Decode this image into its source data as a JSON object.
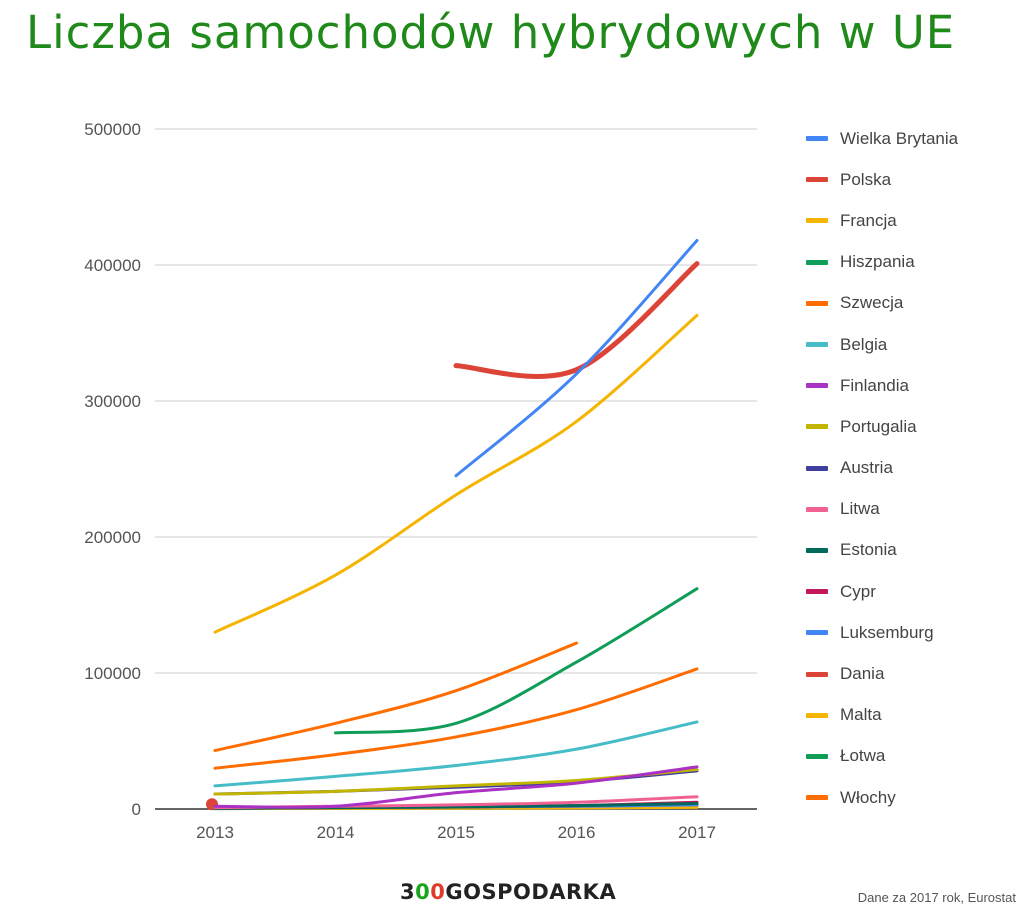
{
  "title": "Liczba samochodów hybrydowych w UE",
  "source_note": "Dane za 2017 rok, Eurostat",
  "brand": {
    "a": "3",
    "b": "0",
    "c": "0",
    "d": "GOSPODARKA"
  },
  "chart_data": {
    "type": "line",
    "title": "Liczba samochodów hybrydowych w UE",
    "x": [
      2013,
      2014,
      2015,
      2016,
      2017
    ],
    "xticks": [
      "2013",
      "2014",
      "2015",
      "2016",
      "2017"
    ],
    "yticks": [
      "0",
      "100000",
      "200000",
      "300000",
      "400000",
      "500000"
    ],
    "ylim": [
      0,
      500000
    ],
    "grid": true,
    "legend": "right",
    "series": [
      {
        "name": "Wielka Brytania",
        "color": "#4285f4",
        "values": [
          null,
          null,
          245000,
          320000,
          418000
        ]
      },
      {
        "name": "Polska",
        "color": "#db4437",
        "values": [
          null,
          null,
          326000,
          323000,
          401000
        ]
      },
      {
        "name": "Francja",
        "color": "#f4b400",
        "values": [
          130000,
          172000,
          231000,
          285000,
          363000
        ]
      },
      {
        "name": "Hiszpania",
        "color": "#0f9d58",
        "values": [
          null,
          56000,
          63000,
          108000,
          162000
        ]
      },
      {
        "name": "Szwecja",
        "color": "#ff6d00",
        "values": [
          30000,
          40000,
          53000,
          73000,
          103000
        ]
      },
      {
        "name": "Belgia",
        "color": "#46bdc6",
        "values": [
          17000,
          24000,
          32000,
          44000,
          64000
        ]
      },
      {
        "name": "Finlandia",
        "color": "#ab30c4",
        "values": [
          2000,
          2000,
          12000,
          19000,
          31000
        ]
      },
      {
        "name": "Portugalia",
        "color": "#c2b500",
        "values": [
          11000,
          13000,
          17000,
          21000,
          29000
        ]
      },
      {
        "name": "Austria",
        "color": "#3f3f9f",
        "values": [
          11000,
          13000,
          16000,
          20000,
          28000
        ]
      },
      {
        "name": "Litwa",
        "color": "#f06292",
        "values": [
          1000,
          2000,
          3000,
          5000,
          9000
        ]
      },
      {
        "name": "Estonia",
        "color": "#00695c",
        "values": [
          500,
          1000,
          1500,
          2500,
          4000
        ]
      },
      {
        "name": "Cypr",
        "color": "#c2185b",
        "values": [
          500,
          1000,
          1500,
          2500,
          5000
        ]
      },
      {
        "name": "Luksemburg",
        "color": "#4285f4",
        "values": [
          500,
          1000,
          1500,
          2000,
          3000
        ]
      },
      {
        "name": "Dania",
        "color": "#db4437",
        "values": [
          2000,
          null,
          null,
          null,
          null
        ]
      },
      {
        "name": "Malta",
        "color": "#f4b400",
        "values": [
          300,
          400,
          600,
          800,
          1200
        ]
      },
      {
        "name": "Łotwa",
        "color": "#0f9d58",
        "values": [
          300,
          500,
          800,
          1200,
          1800
        ]
      },
      {
        "name": "Włochy",
        "color": "#ff6d00",
        "values": [
          43000,
          63000,
          87000,
          122000,
          null
        ]
      }
    ]
  }
}
